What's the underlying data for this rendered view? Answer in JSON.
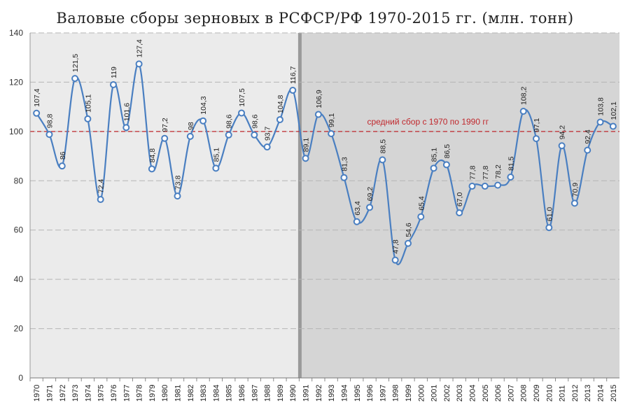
{
  "chart_data": {
    "type": "line",
    "title": "Валовые сборы зерновых в РСФСР/РФ 1970-2015 гг. (млн. тонн)",
    "xlabel": "",
    "ylabel": "",
    "ylim": [
      0,
      140
    ],
    "yticks": [
      0,
      20,
      40,
      60,
      80,
      100,
      120,
      140
    ],
    "grid": true,
    "colors": {
      "line": "#4a7fc1",
      "marker_fill": "#ffffff",
      "marker_edge": "#4a7fc1",
      "bg_left": "#ebebeb",
      "bg_right": "#d5d5d5",
      "divider": "#9a9a9a",
      "refline": "#c0282d"
    },
    "shading_split_year": "1991",
    "x": [
      "1970",
      "1971",
      "1972",
      "1973",
      "1974",
      "1975",
      "1976",
      "1977",
      "1978",
      "1979",
      "1980",
      "1981",
      "1982",
      "1983",
      "1984",
      "1985",
      "1986",
      "1987",
      "1988",
      "1989",
      "1990",
      "1991",
      "1992",
      "1993",
      "1994",
      "1995",
      "1996",
      "1997",
      "1998",
      "1999",
      "2000",
      "2001",
      "2002",
      "2003",
      "2004",
      "2005",
      "2006",
      "2007",
      "2008",
      "2009",
      "2010",
      "2011",
      "2012",
      "2013",
      "2014",
      "2015"
    ],
    "values": [
      107.4,
      98.8,
      86,
      121.5,
      105.1,
      72.4,
      119,
      101.6,
      127.4,
      84.8,
      97.2,
      73.8,
      98,
      104.3,
      85.1,
      98.6,
      107.5,
      98.6,
      93.7,
      104.8,
      116.7,
      89.1,
      106.9,
      99.1,
      81.3,
      63.4,
      69.2,
      88.5,
      47.8,
      54.6,
      65.4,
      85.1,
      86.5,
      67.0,
      77.8,
      77.8,
      78.2,
      81.5,
      108.2,
      97.1,
      61.0,
      94.2,
      70.9,
      92.4,
      103.8,
      102.1
    ],
    "value_labels": [
      "107,4",
      "98,8",
      "86",
      "121,5",
      "105,1",
      "72,4",
      "119",
      "101,6",
      "127,4",
      "84,8",
      "97,2",
      "73,8",
      "98",
      "104,3",
      "85,1",
      "98,6",
      "107,5",
      "98,6",
      "93,7",
      "104,8",
      "116,7",
      "89,1",
      "106,9",
      "99,1",
      "81,3",
      "63,4",
      "69,2",
      "88,5",
      "47,8",
      "54,6",
      "65,4",
      "85,1",
      "86,5",
      "67,0",
      "77,8",
      "77,8",
      "78,2",
      "81,5",
      "108,2",
      "97,1",
      "61,0",
      "94,2",
      "70,9",
      "92,4",
      "103,8",
      "102,1"
    ],
    "reference_line": {
      "value": 100,
      "label": "средний сбор с 1970 по 1990 гг"
    }
  }
}
